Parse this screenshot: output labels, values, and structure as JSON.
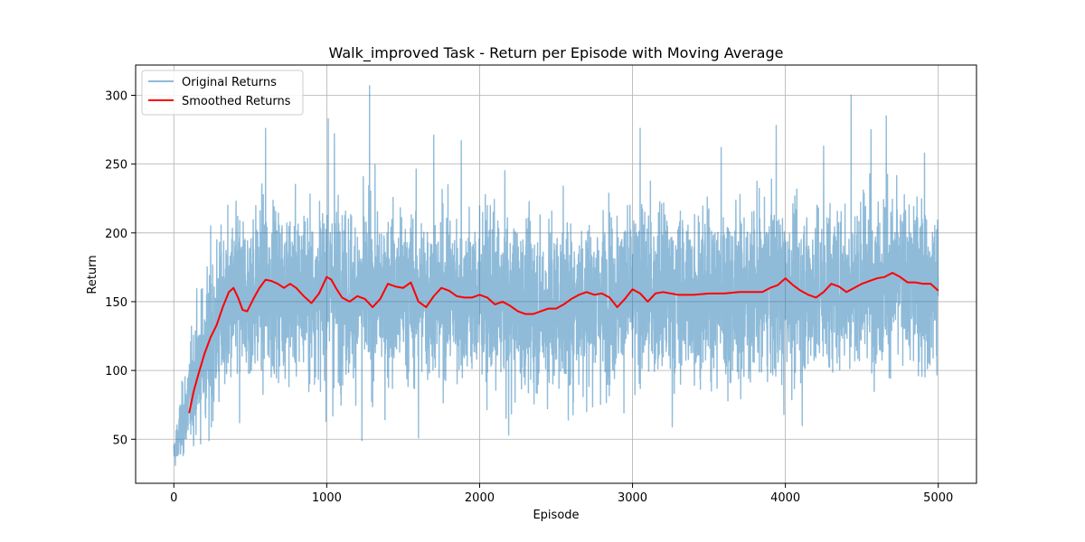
{
  "chart_data": {
    "type": "line",
    "title": "Walk_improved Task - Return per Episode with Moving Average",
    "xlabel": "Episode",
    "ylabel": "Return",
    "xlim": [
      -250,
      5250
    ],
    "ylim": [
      18,
      322
    ],
    "xticks": [
      0,
      1000,
      2000,
      3000,
      4000,
      5000
    ],
    "yticks": [
      50,
      100,
      150,
      200,
      250,
      300
    ],
    "grid": true,
    "legend_position": "top-left",
    "colors": {
      "original": "#1f77b4",
      "smoothed": "#ff0000",
      "grid": "#b0b0b0"
    },
    "series": [
      {
        "name": "Original Returns",
        "style": "noisy-line",
        "episodes": 5000,
        "mean_profile": {
          "x": [
            0,
            50,
            100,
            150,
            200,
            300,
            400,
            500,
            600,
            800,
            1000,
            1200,
            1400,
            1600,
            1800,
            2000,
            2200,
            2400,
            2600,
            2800,
            3000,
            3200,
            3400,
            3600,
            3800,
            4000,
            4200,
            4400,
            4600,
            4800,
            5000
          ],
          "y": [
            35,
            60,
            80,
            100,
            115,
            135,
            150,
            155,
            160,
            158,
            158,
            155,
            155,
            155,
            155,
            152,
            148,
            145,
            150,
            153,
            155,
            155,
            155,
            155,
            157,
            160,
            158,
            162,
            167,
            165,
            160
          ]
        },
        "peaks": [
          {
            "x": 1280,
            "y": 307
          },
          {
            "x": 4430,
            "y": 300
          },
          {
            "x": 4660,
            "y": 285
          },
          {
            "x": 1010,
            "y": 283
          },
          {
            "x": 600,
            "y": 276
          },
          {
            "x": 3050,
            "y": 276
          },
          {
            "x": 3940,
            "y": 278
          },
          {
            "x": 4560,
            "y": 275
          },
          {
            "x": 1700,
            "y": 271
          },
          {
            "x": 1050,
            "y": 272
          },
          {
            "x": 3580,
            "y": 262
          },
          {
            "x": 4250,
            "y": 263
          },
          {
            "x": 1880,
            "y": 267
          },
          {
            "x": 4910,
            "y": 258
          }
        ],
        "troughs": [
          {
            "x": 10,
            "y": 31
          },
          {
            "x": 1230,
            "y": 49
          },
          {
            "x": 230,
            "y": 49
          },
          {
            "x": 1600,
            "y": 51
          },
          {
            "x": 2190,
            "y": 53
          },
          {
            "x": 3260,
            "y": 59
          },
          {
            "x": 4110,
            "y": 60
          },
          {
            "x": 2580,
            "y": 64
          },
          {
            "x": 430,
            "y": 62
          },
          {
            "x": 1040,
            "y": 67
          },
          {
            "x": 2700,
            "y": 70
          },
          {
            "x": 3990,
            "y": 68
          }
        ]
      },
      {
        "name": "Smoothed Returns",
        "style": "line",
        "x": [
          100,
          130,
          160,
          200,
          240,
          280,
          320,
          360,
          390,
          420,
          450,
          480,
          520,
          560,
          600,
          640,
          680,
          720,
          760,
          800,
          850,
          900,
          950,
          1000,
          1030,
          1060,
          1100,
          1150,
          1200,
          1250,
          1300,
          1350,
          1400,
          1450,
          1500,
          1550,
          1600,
          1650,
          1700,
          1750,
          1800,
          1850,
          1900,
          1950,
          2000,
          2050,
          2100,
          2150,
          2200,
          2250,
          2300,
          2350,
          2400,
          2450,
          2500,
          2550,
          2600,
          2650,
          2700,
          2750,
          2800,
          2850,
          2900,
          2950,
          3000,
          3050,
          3100,
          3150,
          3200,
          3300,
          3400,
          3500,
          3600,
          3700,
          3800,
          3850,
          3900,
          3950,
          4000,
          4050,
          4100,
          4150,
          4200,
          4250,
          4300,
          4350,
          4400,
          4450,
          4500,
          4550,
          4600,
          4650,
          4700,
          4750,
          4800,
          4850,
          4900,
          4950,
          5000
        ],
        "y": [
          69,
          85,
          97,
          112,
          124,
          133,
          146,
          157,
          160,
          153,
          144,
          143,
          152,
          160,
          166,
          165,
          163,
          160,
          163,
          160,
          154,
          149,
          156,
          168,
          166,
          160,
          153,
          150,
          154,
          152,
          146,
          152,
          163,
          161,
          160,
          164,
          150,
          146,
          154,
          160,
          158,
          154,
          153,
          153,
          155,
          153,
          148,
          150,
          147,
          143,
          141,
          141,
          143,
          145,
          145,
          148,
          152,
          155,
          157,
          155,
          156,
          153,
          146,
          152,
          159,
          156,
          150,
          156,
          157,
          155,
          155,
          156,
          156,
          157,
          157,
          157,
          160,
          162,
          167,
          162,
          158,
          155,
          153,
          157,
          163,
          161,
          157,
          160,
          163,
          165,
          167,
          168,
          171,
          168,
          164,
          164,
          163,
          163,
          158
        ]
      }
    ]
  }
}
